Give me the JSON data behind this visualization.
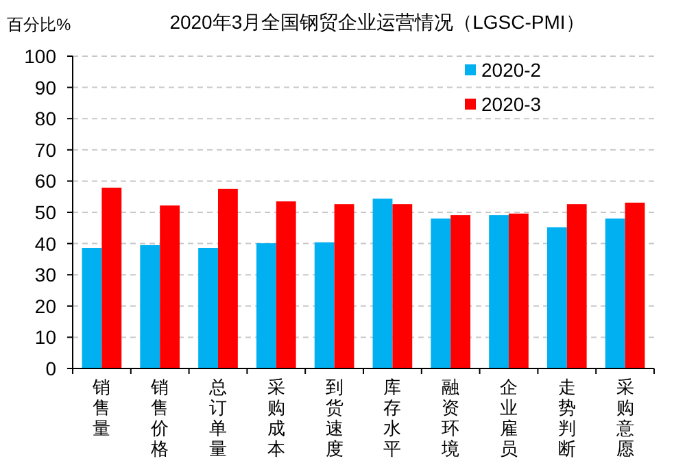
{
  "chart_data": {
    "type": "bar",
    "title": "2020年3月全国钢贸企业运营情况（LGSC-PMI）",
    "ylabel": "百分比%",
    "categories": [
      "销售量",
      "销售价格",
      "总订单量",
      "采购成本",
      "到货速度",
      "库存水平",
      "融资环境",
      "企业雇员",
      "走势判断",
      "采购意愿"
    ],
    "series": [
      {
        "name": "2020-2",
        "color": "#00b0f0",
        "values": [
          38.6,
          39.5,
          38.6,
          40.1,
          40.4,
          54.4,
          48.0,
          49.1,
          45.2,
          48.0
        ]
      },
      {
        "name": "2020-3",
        "color": "#ff0000",
        "values": [
          57.9,
          52.2,
          57.5,
          53.5,
          52.6,
          52.6,
          49.1,
          49.6,
          52.6,
          53.1
        ]
      }
    ],
    "ylim": [
      0,
      100
    ],
    "yticks": [
      0,
      10,
      20,
      30,
      40,
      50,
      60,
      70,
      80,
      90,
      100
    ],
    "grid": "y",
    "legend": "top right"
  }
}
